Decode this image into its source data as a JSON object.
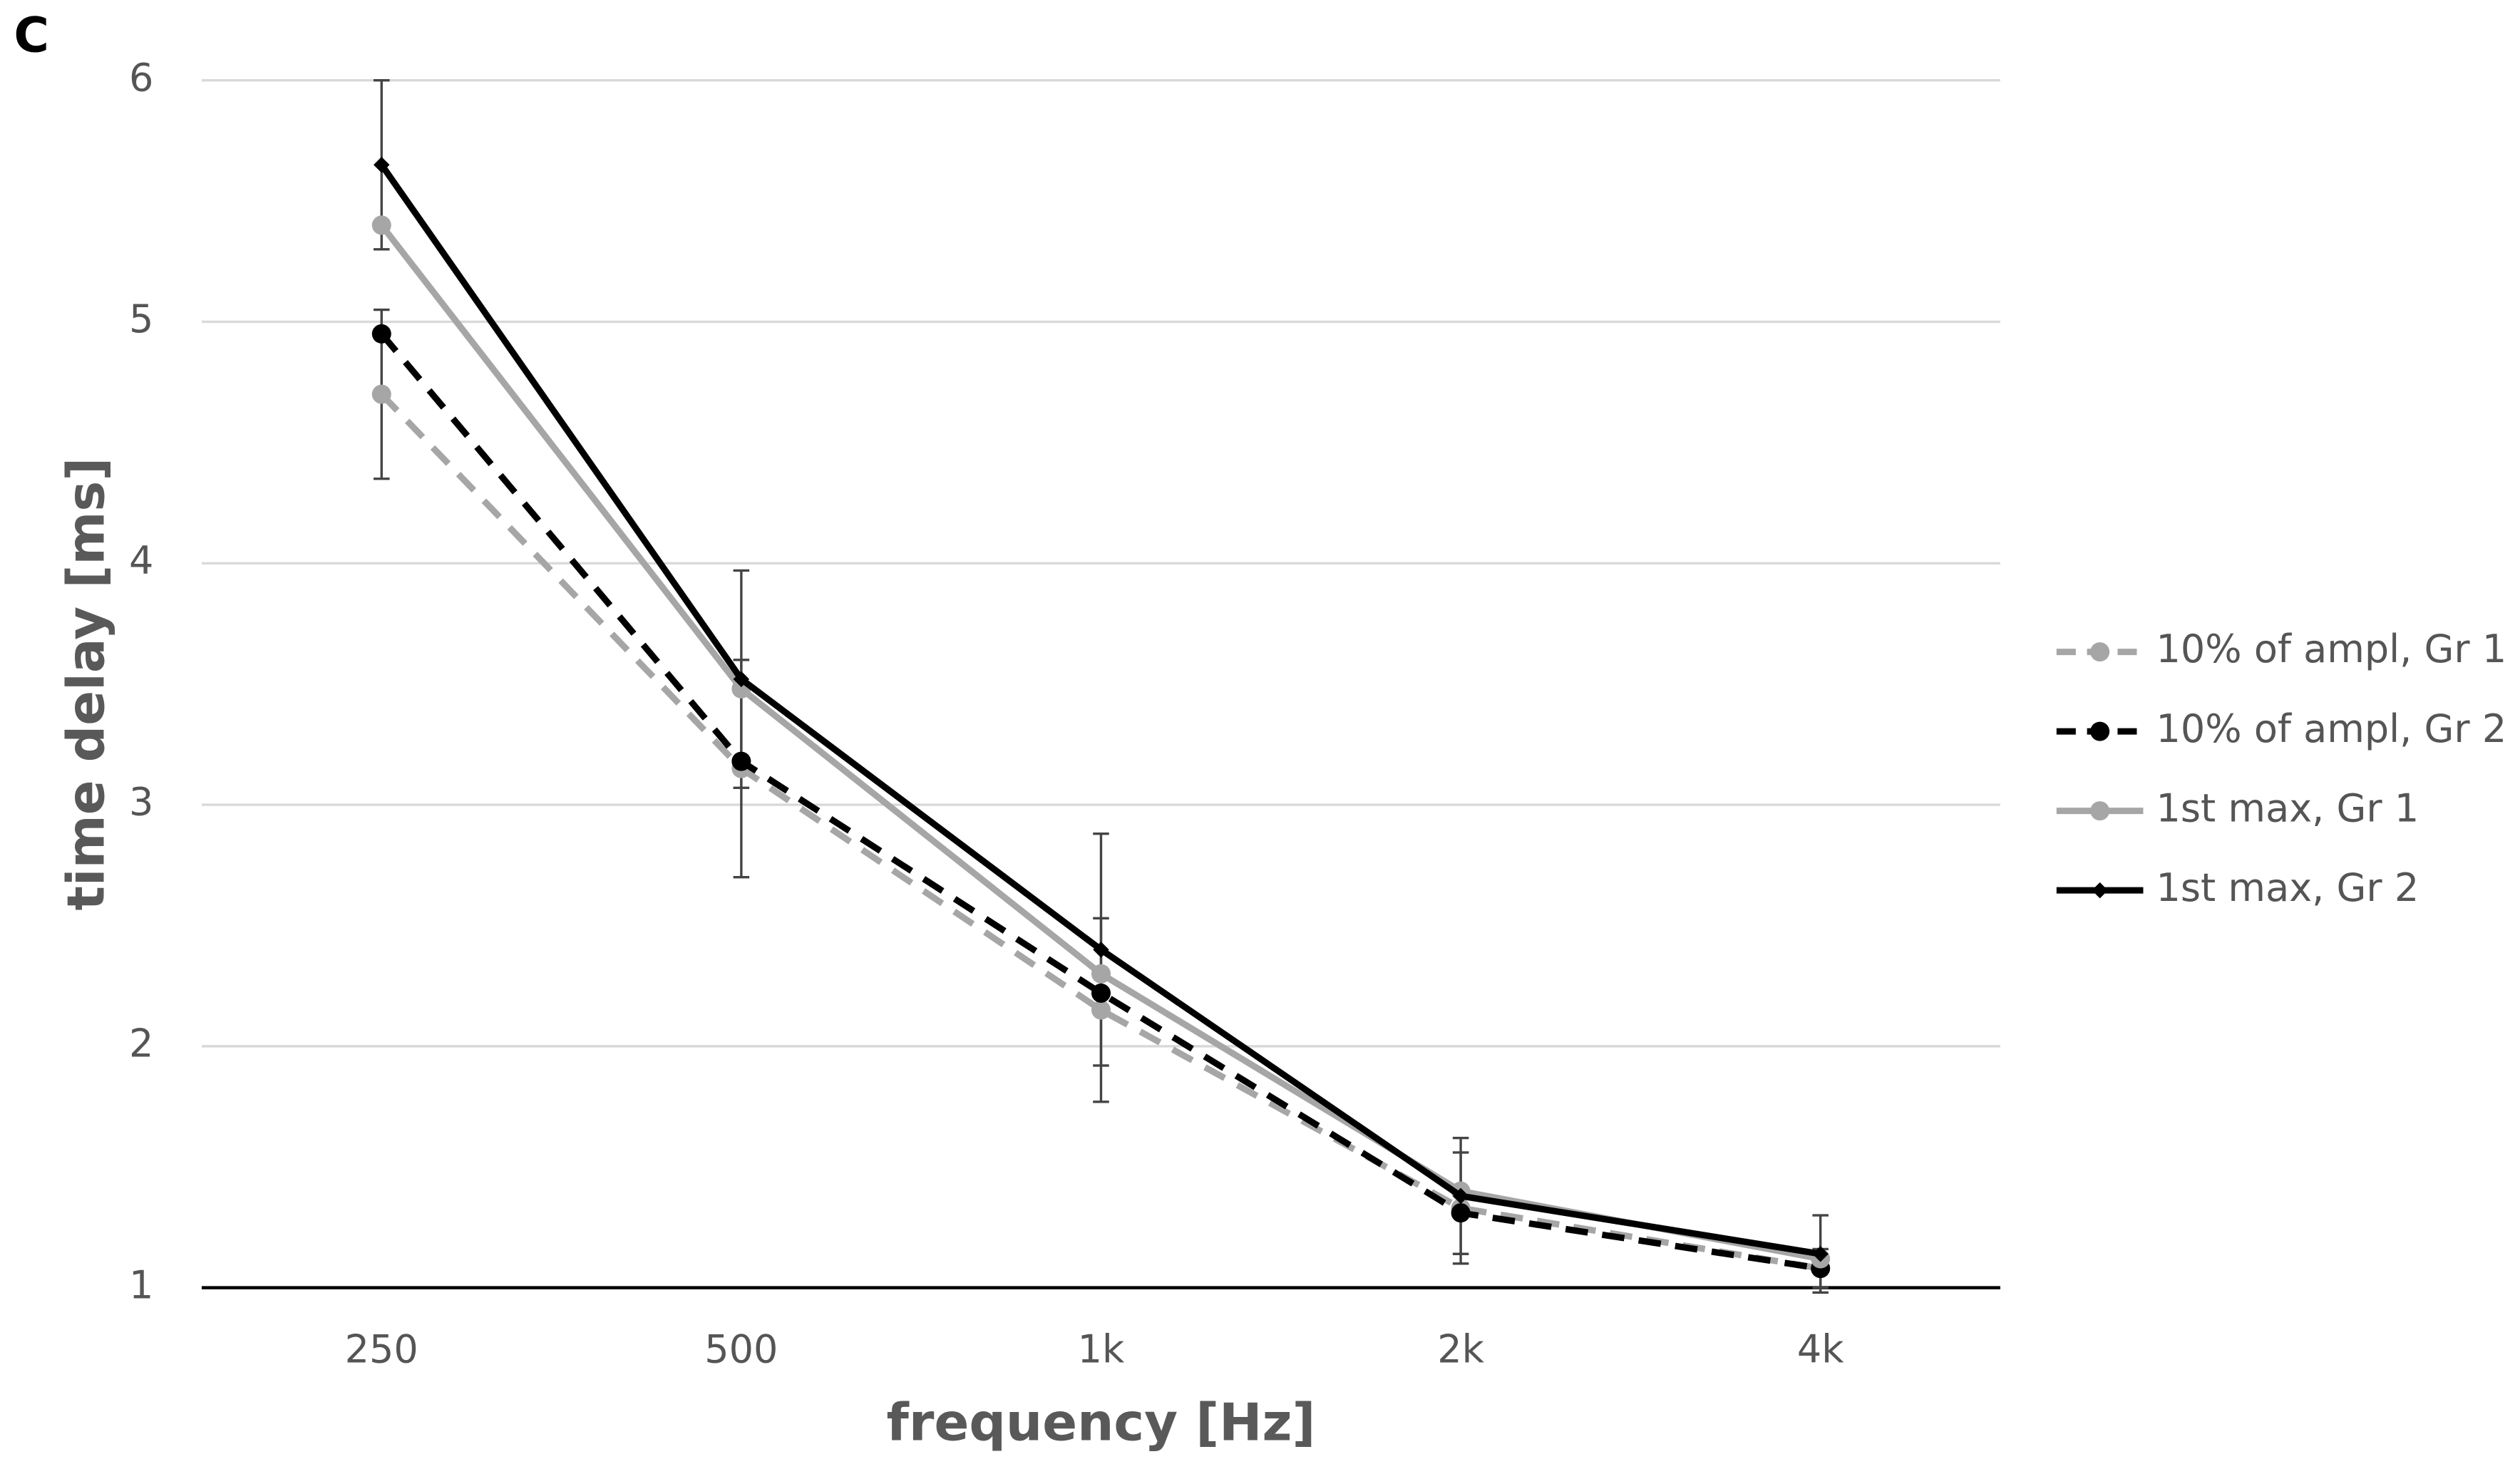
{
  "chart_data": {
    "type": "line",
    "panel_label": "C",
    "x_label": "frequency [Hz]",
    "y_label": "time delay [ms]",
    "categories": [
      "250",
      "500",
      "1k",
      "2k",
      "4k"
    ],
    "ylim": [
      1,
      6
    ],
    "yticks": [
      1,
      2,
      3,
      4,
      5,
      6
    ],
    "grid": true,
    "legend": "right",
    "series": [
      {
        "name": "10% of ampl, Gr 1",
        "color": "#a6a6a6",
        "dash": true,
        "marker": "circle",
        "values": [
          4.7,
          3.15,
          2.15,
          1.33,
          1.08
        ],
        "errors": [
          0.35,
          0.45,
          0.38,
          0.23,
          0.08
        ]
      },
      {
        "name": "10% of ampl, Gr 2",
        "color": "#000000",
        "dash": true,
        "marker": "circle",
        "values": [
          4.95,
          3.18,
          2.22,
          1.31,
          1.08
        ]
      },
      {
        "name": "1st max, Gr 1",
        "color": "#a6a6a6",
        "dash": false,
        "marker": "circle",
        "values": [
          5.4,
          3.48,
          2.3,
          1.4,
          1.12
        ]
      },
      {
        "name": "1st max, Gr 2",
        "color": "#000000",
        "dash": false,
        "marker": "diamond",
        "values": [
          5.65,
          3.52,
          2.4,
          1.38,
          1.14
        ],
        "errors": [
          0.35,
          0.45,
          0.48,
          0.24,
          0.16
        ]
      }
    ]
  }
}
